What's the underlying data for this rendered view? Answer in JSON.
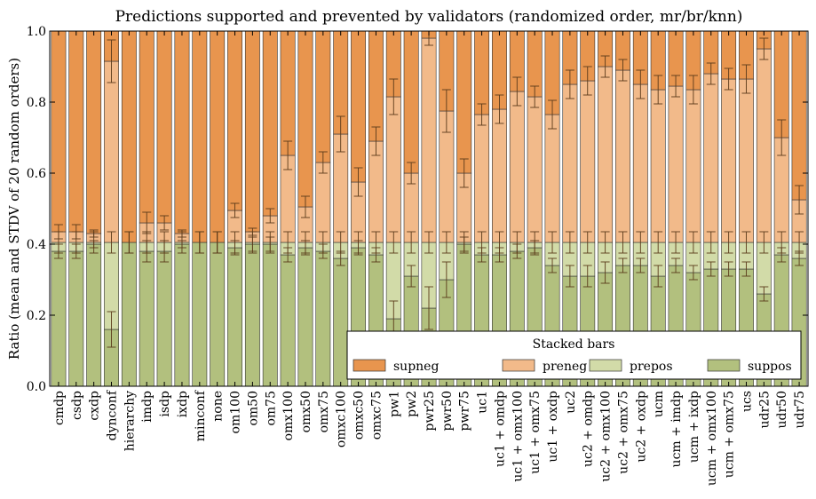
{
  "chart_data": {
    "type": "bar",
    "stacked": true,
    "title": "Predictions supported and prevented by validators (randomized order, mr/br/knn)",
    "xlabel": "",
    "ylabel": "Ratio (mean and STDV of 20 random orders)",
    "ylim": [
      0,
      1.0
    ],
    "yticks": [
      "0.0",
      "0.2",
      "0.4",
      "0.6",
      "0.8",
      "1.0"
    ],
    "grid": false,
    "legend": {
      "title": "Stacked bars",
      "placement": "lower-right",
      "entries": [
        "supneg",
        "preneg",
        "prepos",
        "suppos"
      ]
    },
    "colors": {
      "supneg": "#e8954e",
      "preneg": "#f2ba8a",
      "prepos": "#d2dba8",
      "suppos": "#b2c07e",
      "edge": "#333333",
      "errorbar": "#5a3a1a"
    },
    "categories": [
      "cmdp",
      "csdp",
      "cxdp",
      "dynconf",
      "hierarchy",
      "imdp",
      "isdp",
      "ixdp",
      "minconf",
      "none",
      "om100",
      "om50",
      "om75",
      "omx100",
      "omx50",
      "omx75",
      "omxc100",
      "omxc50",
      "omxc75",
      "pw1",
      "pw2",
      "pwr25",
      "pwr50",
      "pwr75",
      "uc1",
      "uc1 + omdp",
      "uc1 + omx100",
      "uc1 + omx75",
      "uc1 + oxdp",
      "uc2",
      "uc2 + omdp",
      "uc2 + omx100",
      "uc2 + omx75",
      "uc2 + oxdp",
      "ucm",
      "ucm + imdp",
      "ucm + ixdp",
      "ucm + omx100",
      "ucm + omx75",
      "ucs",
      "udr25",
      "udr50",
      "udr75"
    ],
    "positive_total": 0.405,
    "suppos": [
      0.38,
      0.38,
      0.4,
      0.16,
      0.405,
      0.38,
      0.38,
      0.4,
      0.405,
      0.405,
      0.39,
      0.4,
      0.4,
      0.37,
      0.39,
      0.38,
      0.36,
      0.39,
      0.37,
      0.19,
      0.31,
      0.22,
      0.3,
      0.4,
      0.37,
      0.37,
      0.38,
      0.39,
      0.34,
      0.31,
      0.31,
      0.32,
      0.34,
      0.34,
      0.31,
      0.34,
      0.32,
      0.33,
      0.33,
      0.33,
      0.26,
      0.37,
      0.36
    ],
    "suppos_err": [
      0.02,
      0.02,
      0.01,
      0.05,
      0.03,
      0.03,
      0.03,
      0.01,
      0.03,
      0.03,
      0.02,
      0.02,
      0.02,
      0.02,
      0.02,
      0.02,
      0.02,
      0.02,
      0.02,
      0.05,
      0.03,
      0.06,
      0.05,
      0.02,
      0.02,
      0.02,
      0.02,
      0.02,
      0.02,
      0.03,
      0.03,
      0.03,
      0.02,
      0.02,
      0.03,
      0.02,
      0.02,
      0.02,
      0.02,
      0.02,
      0.02,
      0.02,
      0.02
    ],
    "preneg_top": [
      0.435,
      0.435,
      0.43,
      0.915,
      0.405,
      0.46,
      0.46,
      0.43,
      0.405,
      0.405,
      0.495,
      0.435,
      0.48,
      0.65,
      0.505,
      0.63,
      0.71,
      0.575,
      0.69,
      0.815,
      0.6,
      0.98,
      0.775,
      0.6,
      0.765,
      0.78,
      0.83,
      0.815,
      0.765,
      0.85,
      0.86,
      0.9,
      0.89,
      0.85,
      0.835,
      0.845,
      0.835,
      0.88,
      0.865,
      0.865,
      0.95,
      0.7,
      0.525
    ],
    "preneg_top_err": [
      0.02,
      0.02,
      0.01,
      0.06,
      0.03,
      0.03,
      0.02,
      0.01,
      0.03,
      0.03,
      0.02,
      0.01,
      0.02,
      0.04,
      0.03,
      0.03,
      0.05,
      0.04,
      0.04,
      0.05,
      0.03,
      0.02,
      0.06,
      0.04,
      0.03,
      0.04,
      0.04,
      0.03,
      0.04,
      0.04,
      0.04,
      0.03,
      0.03,
      0.04,
      0.04,
      0.03,
      0.04,
      0.03,
      0.03,
      0.04,
      0.03,
      0.05,
      0.04
    ]
  }
}
